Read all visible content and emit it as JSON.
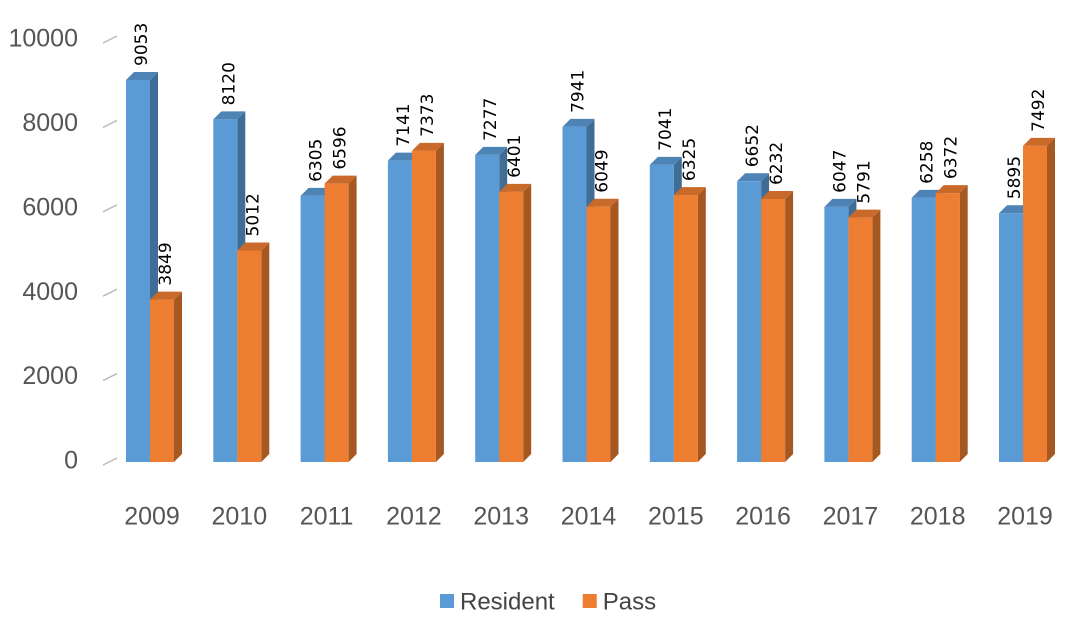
{
  "chart_data": {
    "type": "bar3d",
    "categories": [
      "2009",
      "2010",
      "2011",
      "2012",
      "2013",
      "2014",
      "2015",
      "2016",
      "2017",
      "2018",
      "2019"
    ],
    "series": [
      {
        "name": "Resident",
        "color": "#5b9bd5",
        "values": [
          9053,
          8120,
          6305,
          7141,
          7277,
          7941,
          7041,
          6652,
          6047,
          6258,
          5895
        ]
      },
      {
        "name": "Pass",
        "color": "#ed7d31",
        "values": [
          3849,
          5012,
          6596,
          7373,
          6401,
          6049,
          6325,
          6232,
          5791,
          6372,
          7492
        ]
      }
    ],
    "ylim": [
      0,
      10000
    ],
    "yticks": [
      0,
      2000,
      4000,
      6000,
      8000,
      10000
    ],
    "legend": "bottom"
  }
}
